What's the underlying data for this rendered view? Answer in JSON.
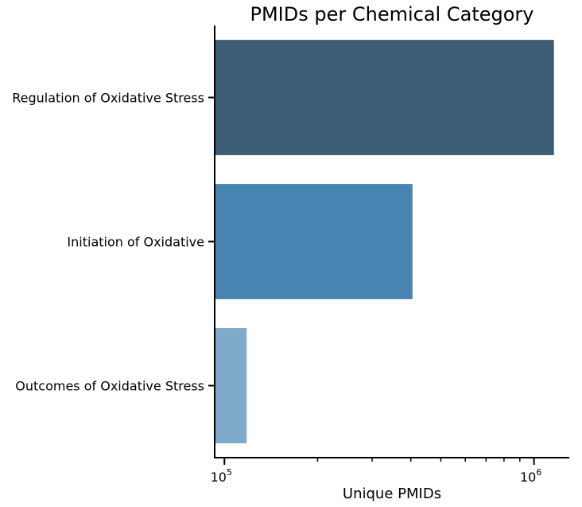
{
  "chart_data": {
    "type": "bar",
    "orientation": "horizontal",
    "title": "PMIDs per Chemical Category",
    "xlabel": "Unique PMIDs",
    "ylabel": "",
    "xscale": "log",
    "xlim": [
      93000,
      1300000
    ],
    "categories": [
      "Regulation of Oxidative Stress",
      "Initiation of Oxidative",
      "Outcomes of Oxidative Stress"
    ],
    "values": [
      1160000,
      405000,
      118000
    ],
    "colors": [
      "#3d5d74",
      "#4884b1",
      "#7fa9c9"
    ],
    "x_ticks": [
      {
        "base": "10",
        "exp": "5",
        "value": 100000
      },
      {
        "base": "10",
        "exp": "6",
        "value": 1000000
      }
    ],
    "grid": false,
    "legend": "none"
  }
}
